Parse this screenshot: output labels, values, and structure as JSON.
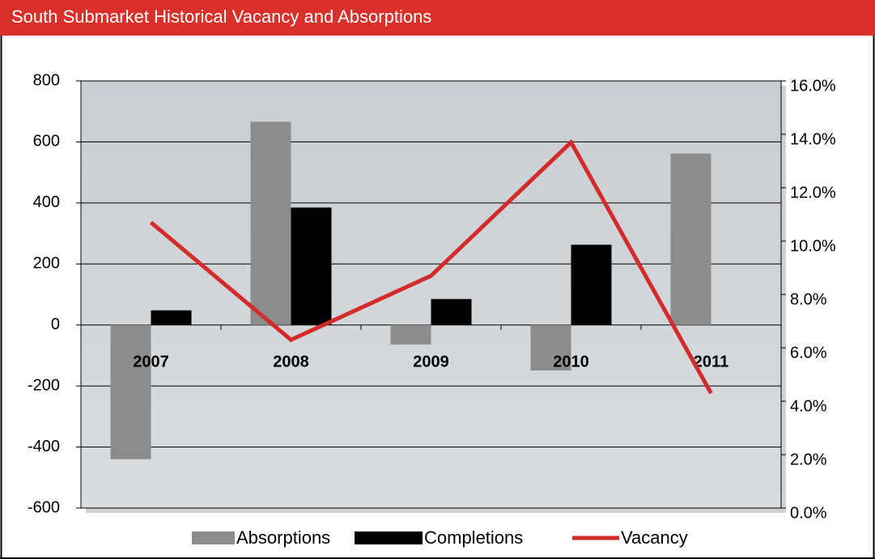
{
  "chart_data": {
    "type": "bar",
    "title": "South Submarket Historical Vacancy and Absorptions",
    "categories": [
      "2007",
      "2008",
      "2009",
      "2010",
      "2011"
    ],
    "series": [
      {
        "name": "Absorptions",
        "type": "bar",
        "color": "#8c8c8c",
        "values": [
          -440,
          666,
          -64,
          -149,
          562
        ]
      },
      {
        "name": "Completions",
        "type": "bar",
        "color": "#000000",
        "values": [
          48,
          385,
          85,
          263,
          0
        ]
      },
      {
        "name": "Vacancy",
        "type": "line",
        "axis": "y2",
        "color": "#d32a2a",
        "values": [
          10.7,
          6.3,
          8.7,
          13.7,
          4.3
        ]
      }
    ],
    "ylim": [
      -600,
      800
    ],
    "yticks": [
      -600,
      -400,
      -200,
      0,
      200,
      400,
      600,
      800
    ],
    "y2lim": [
      0,
      16
    ],
    "y2ticks": [
      {
        "value": 0,
        "label": "0.0%"
      },
      {
        "value": 2,
        "label": "2.0%"
      },
      {
        "value": 4,
        "label": "4.0%"
      },
      {
        "value": 6,
        "label": "6.0%"
      },
      {
        "value": 8,
        "label": "8.0%"
      },
      {
        "value": 10,
        "label": "10.0%"
      },
      {
        "value": 12,
        "label": "12.0%"
      },
      {
        "value": 14,
        "label": "14.0%"
      },
      {
        "value": 16,
        "label": "16.0%"
      }
    ],
    "grid": true,
    "legend": "bottom"
  }
}
